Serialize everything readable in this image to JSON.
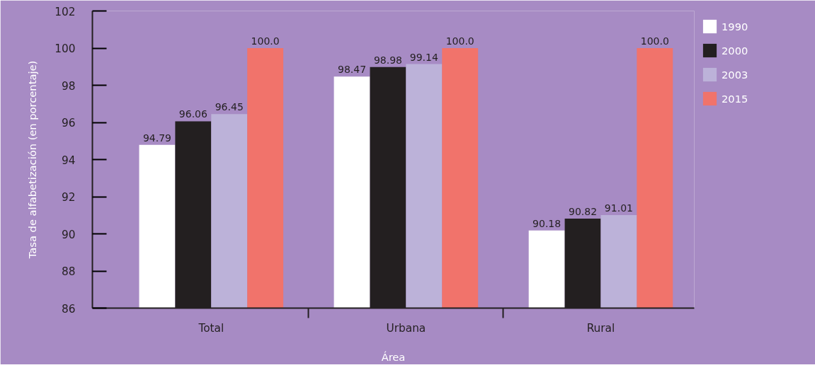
{
  "chart_data": {
    "type": "bar",
    "xlabel": "Área",
    "ylabel": "Tasa de alfabetización (en porcentaje)",
    "categories": [
      "Total",
      "Urbana",
      "Rural"
    ],
    "series": [
      {
        "name": "1990",
        "color": "#ffffff",
        "values": [
          94.79,
          98.47,
          90.18
        ],
        "value_labels": [
          "94.79",
          "98.47",
          "90.18"
        ]
      },
      {
        "name": "2000",
        "color": "#231f20",
        "values": [
          96.06,
          98.98,
          90.82
        ],
        "value_labels": [
          "96.06",
          "98.98",
          "90.82"
        ]
      },
      {
        "name": "2003",
        "color": "#bcb2d9",
        "values": [
          96.45,
          99.14,
          91.01
        ],
        "value_labels": [
          "96.45",
          "99.14",
          "91.01"
        ]
      },
      {
        "name": "2015",
        "color": "#f1736b",
        "values": [
          100,
          100,
          100
        ],
        "value_labels": [
          "100.0",
          "100.0",
          "100.0"
        ]
      }
    ],
    "ylim": [
      86,
      102
    ],
    "yticks": [
      86,
      88,
      90,
      92,
      94,
      96,
      98,
      100,
      102
    ],
    "grid": false,
    "legend": "right"
  }
}
